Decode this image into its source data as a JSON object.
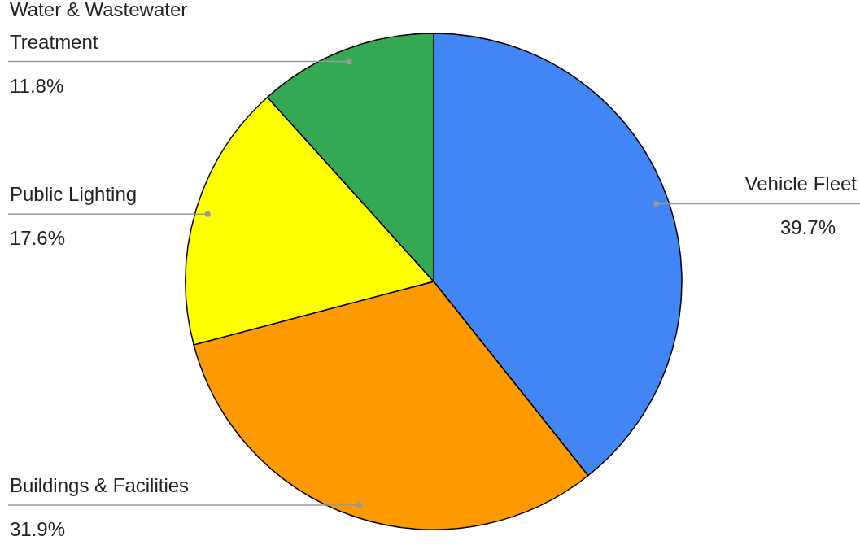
{
  "chart_data": {
    "type": "pie",
    "categories": [
      "Vehicle Fleet",
      "Buildings & Facilities",
      "Public Lighting",
      "Water & Wastewater Treatment"
    ],
    "values": [
      39.7,
      31.9,
      17.6,
      11.8
    ],
    "colors": [
      "#4285f4",
      "#ff9900",
      "#ffff00",
      "#34a853"
    ],
    "value_labels": [
      "39.7%",
      "31.9%",
      "17.6%",
      "11.8%"
    ],
    "legend": false
  }
}
